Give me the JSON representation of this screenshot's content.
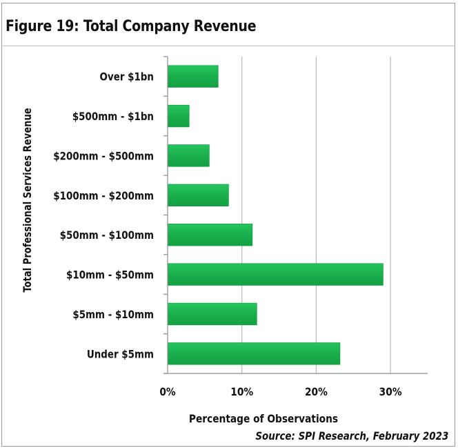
{
  "figure": {
    "title": "Figure 19:  Total Company Revenue",
    "source": "Source: SPI Research, February 2023"
  },
  "chart_data": {
    "type": "bar",
    "orientation": "horizontal",
    "title": "Figure 19:  Total Company Revenue",
    "xlabel": "Percentage of Observations",
    "ylabel": "Total Professional Services Revenue",
    "categories": [
      "Over $1bn",
      "$500mm - $1bn",
      "$200mm - $500mm",
      "$100mm - $200mm",
      "$50mm - $100mm",
      "$10mm - $50mm",
      "$5mm - $10mm",
      "Under $5mm"
    ],
    "values": [
      6.8,
      2.9,
      5.6,
      8.2,
      11.4,
      29.0,
      12.0,
      23.2
    ],
    "xlim": [
      0,
      35
    ],
    "xticks": [
      0,
      10,
      20,
      30
    ],
    "xtick_labels": [
      "0%",
      "10%",
      "20%",
      "30%"
    ],
    "grid": "vertical",
    "bar_color": "#1db954",
    "legend": "none"
  }
}
